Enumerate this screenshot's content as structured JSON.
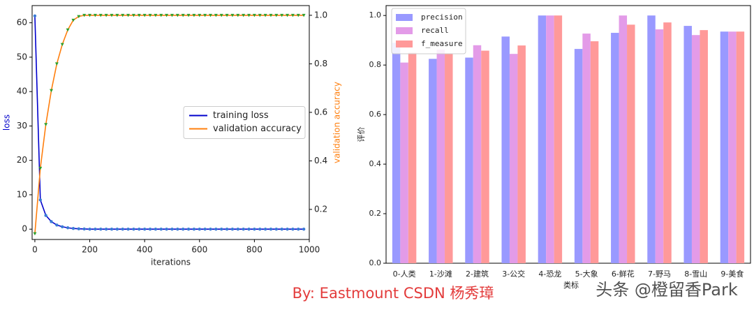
{
  "chart_data": [
    {
      "type": "line",
      "x_label": "iterations",
      "y_label": "loss",
      "y2_label": "validation accuracy",
      "x": [
        0,
        20,
        40,
        60,
        80,
        100,
        120,
        140,
        160,
        180,
        200,
        220,
        240,
        260,
        280,
        300,
        320,
        340,
        360,
        380,
        400,
        420,
        440,
        460,
        480,
        500,
        520,
        540,
        560,
        580,
        600,
        620,
        640,
        660,
        680,
        700,
        720,
        740,
        760,
        780,
        800,
        820,
        840,
        860,
        880,
        900,
        920,
        940,
        960,
        980
      ],
      "series": [
        {
          "name": "training loss",
          "color": "#0000cc",
          "marker_color": "#3a7bd5",
          "marker": "circle",
          "axis": "y",
          "values": [
            62,
            8.5,
            4,
            2.2,
            1.2,
            0.7,
            0.4,
            0.2,
            0.1,
            0.05,
            0,
            0,
            0,
            0,
            0,
            0,
            0,
            0,
            0,
            0,
            0,
            0,
            0,
            0,
            0,
            0,
            0,
            0,
            0,
            0,
            0,
            0,
            0,
            0,
            0,
            0,
            0,
            0,
            0,
            0,
            0,
            0,
            0,
            0,
            0,
            0,
            0,
            0,
            0,
            0
          ]
        },
        {
          "name": "validation accuracy",
          "color": "#ff7f0e",
          "marker_color": "#2ca02c",
          "marker": "triangle",
          "axis": "y2",
          "values": [
            0.1,
            0.37,
            0.55,
            0.69,
            0.8,
            0.88,
            0.94,
            0.98,
            0.995,
            1,
            1,
            1,
            1,
            1,
            1,
            1,
            1,
            1,
            1,
            1,
            1,
            1,
            1,
            1,
            1,
            1,
            1,
            1,
            1,
            1,
            1,
            1,
            1,
            1,
            1,
            1,
            1,
            1,
            1,
            1,
            1,
            1,
            1,
            1,
            1,
            1,
            1,
            1,
            1,
            1
          ]
        }
      ],
      "xlim": [
        -10,
        1000
      ],
      "xticks": [
        0,
        200,
        400,
        600,
        800,
        1000
      ],
      "ylim": [
        -3,
        65
      ],
      "yticks": [
        0,
        10,
        20,
        30,
        40,
        50,
        60
      ],
      "y2lim": [
        0.076,
        1.04
      ],
      "y2ticks": [
        0.2,
        0.4,
        0.6,
        0.8,
        {
          "value": 1,
          "label": "1.0"
        }
      ],
      "legend": "center right"
    },
    {
      "type": "bar",
      "x_label": "类标",
      "y_label": "评价",
      "categories": [
        "0-人类",
        "1-沙滩",
        "2-建筑",
        "3-公交",
        "4-恐龙",
        "5-大象",
        "6-鲜花",
        "7-野马",
        "8-雪山",
        "9-美食"
      ],
      "series": [
        {
          "name": "precision",
          "color": "#9999ff",
          "values": [
            0.89,
            0.825,
            0.83,
            0.915,
            1,
            0.865,
            0.93,
            1,
            0.958,
            0.935
          ]
        },
        {
          "name": "recall",
          "color": "#e39be8",
          "values": [
            0.81,
            0.862,
            0.88,
            0.845,
            1,
            0.927,
            1,
            0.944,
            0.921,
            0.935
          ]
        },
        {
          "name": "f_measure",
          "color": "#ff9999",
          "values": [
            0.85,
            0.845,
            0.858,
            0.879,
            1,
            0.896,
            0.963,
            0.972,
            0.941,
            0.935
          ]
        }
      ],
      "ylim": [
        0,
        1.04
      ],
      "yticks": [
        {
          "value": 0,
          "label": "0.0"
        },
        0.2,
        0.4,
        0.6,
        0.8,
        {
          "value": 1,
          "label": "1.0"
        }
      ],
      "legend": "upper left"
    }
  ],
  "caption": "By:  Eastmount CSDN 杨秀璋",
  "watermark": "头条 @橙留香Park"
}
